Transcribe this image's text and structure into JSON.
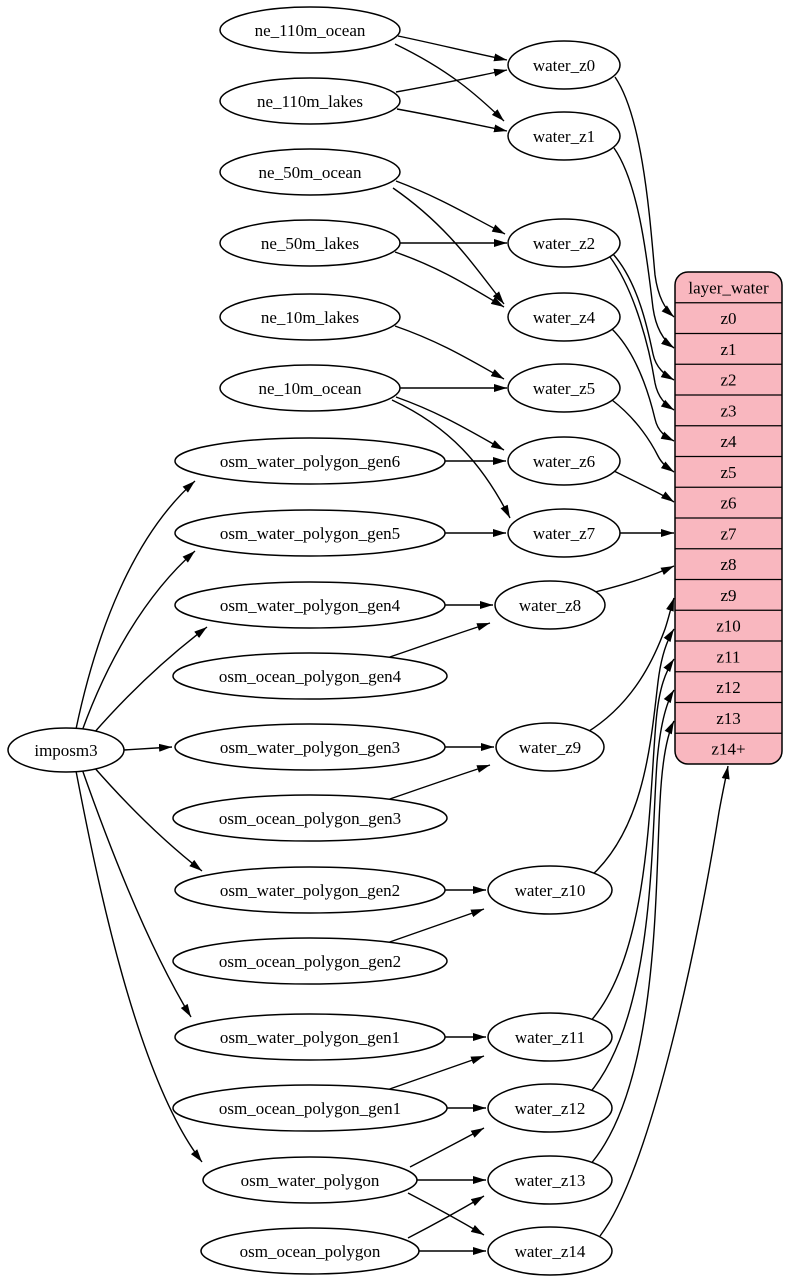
{
  "diagram_type": "etl-dependency-graph",
  "colors": {
    "background": "#ffffff",
    "node_fill": "#ffffff",
    "node_stroke": "#000000",
    "edge": "#000000",
    "layer_fill": "#f9b7bf",
    "layer_stroke": "#000000",
    "text": "#000000"
  },
  "nodes": [
    {
      "id": "imposm3",
      "label": "imposm3",
      "kind": "import-tool"
    },
    {
      "id": "ne_110m_ocean",
      "label": "ne_110m_ocean",
      "kind": "source-table"
    },
    {
      "id": "ne_110m_lakes",
      "label": "ne_110m_lakes",
      "kind": "source-table"
    },
    {
      "id": "ne_50m_ocean",
      "label": "ne_50m_ocean",
      "kind": "source-table"
    },
    {
      "id": "ne_50m_lakes",
      "label": "ne_50m_lakes",
      "kind": "source-table"
    },
    {
      "id": "ne_10m_lakes",
      "label": "ne_10m_lakes",
      "kind": "source-table"
    },
    {
      "id": "ne_10m_ocean",
      "label": "ne_10m_ocean",
      "kind": "source-table"
    },
    {
      "id": "osm_water_polygon_gen6",
      "label": "osm_water_polygon_gen6",
      "kind": "source-table"
    },
    {
      "id": "osm_water_polygon_gen5",
      "label": "osm_water_polygon_gen5",
      "kind": "source-table"
    },
    {
      "id": "osm_water_polygon_gen4",
      "label": "osm_water_polygon_gen4",
      "kind": "source-table"
    },
    {
      "id": "osm_ocean_polygon_gen4",
      "label": "osm_ocean_polygon_gen4",
      "kind": "source-table"
    },
    {
      "id": "osm_water_polygon_gen3",
      "label": "osm_water_polygon_gen3",
      "kind": "source-table"
    },
    {
      "id": "osm_ocean_polygon_gen3",
      "label": "osm_ocean_polygon_gen3",
      "kind": "source-table"
    },
    {
      "id": "osm_water_polygon_gen2",
      "label": "osm_water_polygon_gen2",
      "kind": "source-table"
    },
    {
      "id": "osm_ocean_polygon_gen2",
      "label": "osm_ocean_polygon_gen2",
      "kind": "source-table"
    },
    {
      "id": "osm_water_polygon_gen1",
      "label": "osm_water_polygon_gen1",
      "kind": "source-table"
    },
    {
      "id": "osm_ocean_polygon_gen1",
      "label": "osm_ocean_polygon_gen1",
      "kind": "source-table"
    },
    {
      "id": "osm_water_polygon",
      "label": "osm_water_polygon",
      "kind": "source-table"
    },
    {
      "id": "osm_ocean_polygon",
      "label": "osm_ocean_polygon",
      "kind": "source-table"
    },
    {
      "id": "water_z0",
      "label": "water_z0",
      "kind": "intermediate-table"
    },
    {
      "id": "water_z1",
      "label": "water_z1",
      "kind": "intermediate-table"
    },
    {
      "id": "water_z2",
      "label": "water_z2",
      "kind": "intermediate-table"
    },
    {
      "id": "water_z4",
      "label": "water_z4",
      "kind": "intermediate-table"
    },
    {
      "id": "water_z5",
      "label": "water_z5",
      "kind": "intermediate-table"
    },
    {
      "id": "water_z6",
      "label": "water_z6",
      "kind": "intermediate-table"
    },
    {
      "id": "water_z7",
      "label": "water_z7",
      "kind": "intermediate-table"
    },
    {
      "id": "water_z8",
      "label": "water_z8",
      "kind": "intermediate-table"
    },
    {
      "id": "water_z9",
      "label": "water_z9",
      "kind": "intermediate-table"
    },
    {
      "id": "water_z10",
      "label": "water_z10",
      "kind": "intermediate-table"
    },
    {
      "id": "water_z11",
      "label": "water_z11",
      "kind": "intermediate-table"
    },
    {
      "id": "water_z12",
      "label": "water_z12",
      "kind": "intermediate-table"
    },
    {
      "id": "water_z13",
      "label": "water_z13",
      "kind": "intermediate-table"
    },
    {
      "id": "water_z14",
      "label": "water_z14",
      "kind": "intermediate-table"
    }
  ],
  "layer_table": {
    "id": "layer_water",
    "title": "layer_water",
    "rows": [
      "z0",
      "z1",
      "z2",
      "z3",
      "z4",
      "z5",
      "z6",
      "z7",
      "z8",
      "z9",
      "z10",
      "z11",
      "z12",
      "z13",
      "z14+"
    ]
  },
  "edges": [
    {
      "from": "ne_110m_ocean",
      "to": "water_z0"
    },
    {
      "from": "ne_110m_lakes",
      "to": "water_z0"
    },
    {
      "from": "ne_110m_ocean",
      "to": "water_z1"
    },
    {
      "from": "ne_110m_lakes",
      "to": "water_z1"
    },
    {
      "from": "ne_50m_ocean",
      "to": "water_z2"
    },
    {
      "from": "ne_50m_lakes",
      "to": "water_z2"
    },
    {
      "from": "ne_50m_ocean",
      "to": "water_z4"
    },
    {
      "from": "ne_50m_lakes",
      "to": "water_z4"
    },
    {
      "from": "ne_10m_lakes",
      "to": "water_z5"
    },
    {
      "from": "ne_10m_ocean",
      "to": "water_z5"
    },
    {
      "from": "ne_10m_ocean",
      "to": "water_z6"
    },
    {
      "from": "osm_water_polygon_gen6",
      "to": "water_z6"
    },
    {
      "from": "ne_10m_ocean",
      "to": "water_z7"
    },
    {
      "from": "osm_water_polygon_gen5",
      "to": "water_z7"
    },
    {
      "from": "osm_water_polygon_gen4",
      "to": "water_z8"
    },
    {
      "from": "osm_ocean_polygon_gen4",
      "to": "water_z8"
    },
    {
      "from": "osm_water_polygon_gen3",
      "to": "water_z9"
    },
    {
      "from": "osm_ocean_polygon_gen3",
      "to": "water_z9"
    },
    {
      "from": "osm_water_polygon_gen2",
      "to": "water_z10"
    },
    {
      "from": "osm_ocean_polygon_gen2",
      "to": "water_z10"
    },
    {
      "from": "osm_water_polygon_gen1",
      "to": "water_z11"
    },
    {
      "from": "osm_ocean_polygon_gen1",
      "to": "water_z11"
    },
    {
      "from": "osm_ocean_polygon_gen1",
      "to": "water_z12"
    },
    {
      "from": "osm_water_polygon",
      "to": "water_z12"
    },
    {
      "from": "osm_water_polygon",
      "to": "water_z13"
    },
    {
      "from": "osm_ocean_polygon",
      "to": "water_z13"
    },
    {
      "from": "osm_water_polygon",
      "to": "water_z14"
    },
    {
      "from": "osm_ocean_polygon",
      "to": "water_z14"
    },
    {
      "from": "imposm3",
      "to": "osm_water_polygon_gen6"
    },
    {
      "from": "imposm3",
      "to": "osm_water_polygon_gen5"
    },
    {
      "from": "imposm3",
      "to": "osm_water_polygon_gen4"
    },
    {
      "from": "imposm3",
      "to": "osm_water_polygon_gen3"
    },
    {
      "from": "imposm3",
      "to": "osm_water_polygon_gen2"
    },
    {
      "from": "imposm3",
      "to": "osm_water_polygon_gen1"
    },
    {
      "from": "imposm3",
      "to": "osm_water_polygon"
    },
    {
      "from": "water_z0",
      "to": "row:z0"
    },
    {
      "from": "water_z1",
      "to": "row:z1"
    },
    {
      "from": "water_z2",
      "to": "row:z2"
    },
    {
      "from": "water_z2",
      "to": "row:z3"
    },
    {
      "from": "water_z4",
      "to": "row:z4"
    },
    {
      "from": "water_z5",
      "to": "row:z5"
    },
    {
      "from": "water_z6",
      "to": "row:z6"
    },
    {
      "from": "water_z7",
      "to": "row:z7"
    },
    {
      "from": "water_z8",
      "to": "row:z8"
    },
    {
      "from": "water_z9",
      "to": "row:z9"
    },
    {
      "from": "water_z10",
      "to": "row:z10"
    },
    {
      "from": "water_z11",
      "to": "row:z11"
    },
    {
      "from": "water_z12",
      "to": "row:z12"
    },
    {
      "from": "water_z13",
      "to": "row:z13"
    },
    {
      "from": "water_z14",
      "to": "row:z14+"
    }
  ]
}
